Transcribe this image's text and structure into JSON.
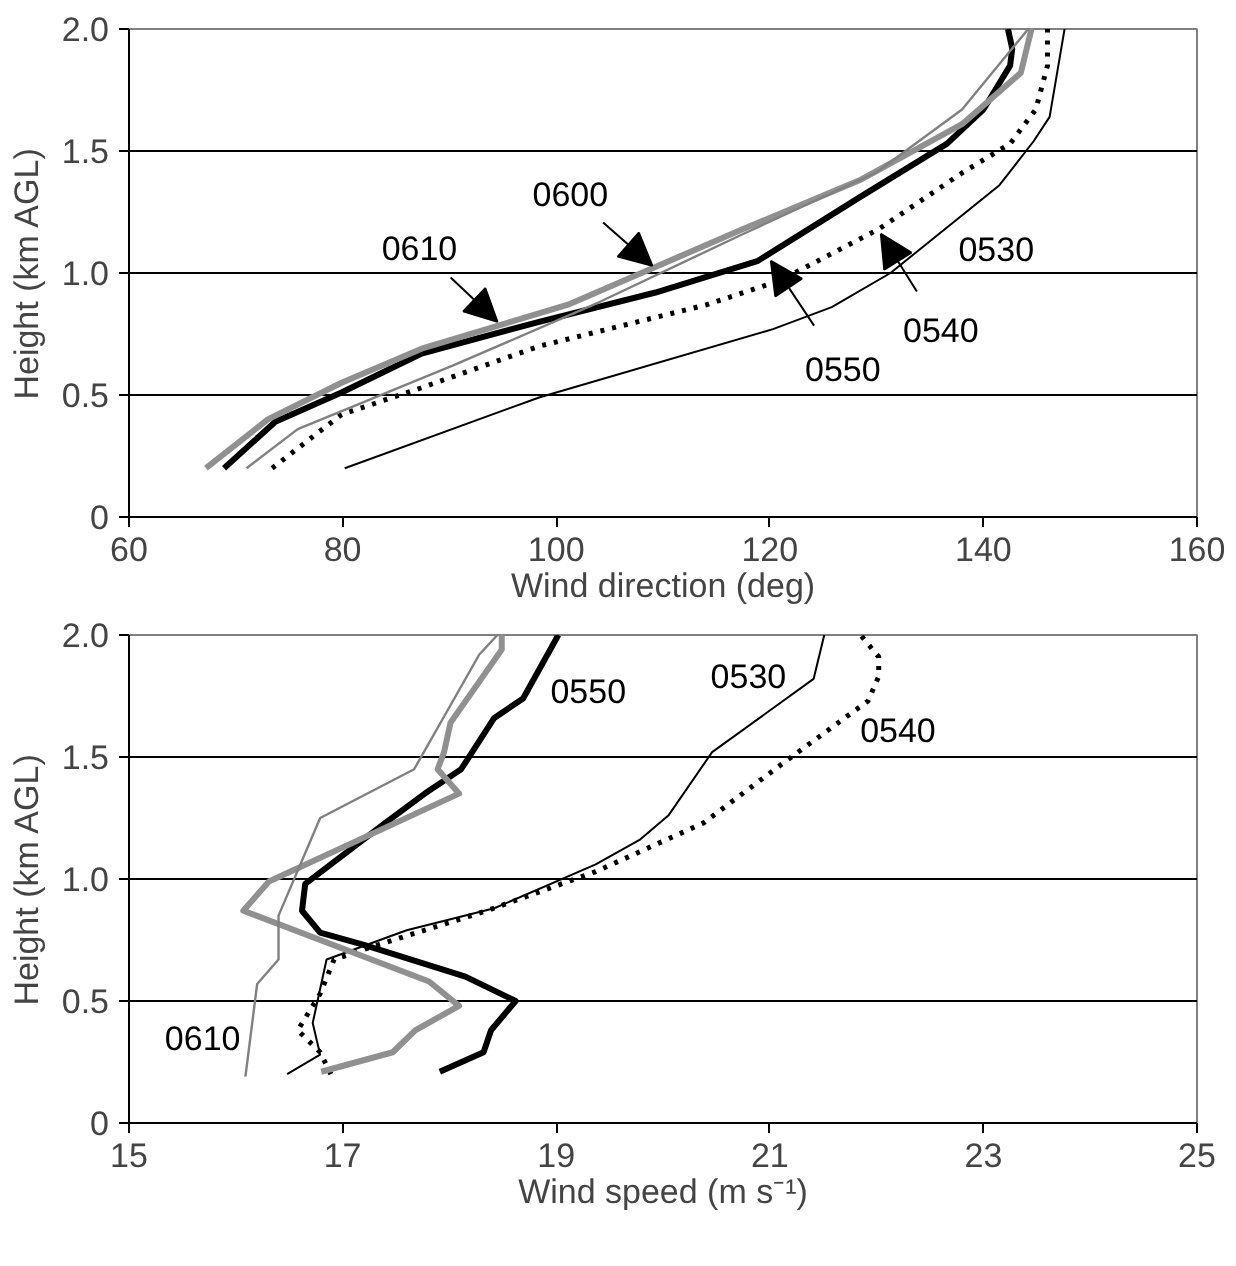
{
  "chart_data": [
    {
      "type": "line",
      "xlabel": "Wind direction (deg)",
      "ylabel": "Height (km AGL)",
      "xlim": [
        60,
        160
      ],
      "xticks": [
        60,
        80,
        100,
        120,
        140,
        160
      ],
      "ylim": [
        0,
        2.0
      ],
      "yticks": [
        0,
        {
          "value": 0.5,
          "label": "0.5"
        },
        {
          "value": 1.0,
          "label": "1.0"
        },
        {
          "value": 1.5,
          "label": "1.5"
        },
        {
          "value": 2.0,
          "label": "2.0"
        }
      ],
      "grid": "y",
      "marker": "none",
      "series": [
        {
          "color": "#000000",
          "line_style": "solid",
          "x": [
            80.2,
            98.4,
            120.3,
            125.8,
            131.3,
            141.5,
            144.7,
            146.2,
            147.6
          ],
          "values": [
            0.2,
            0.49,
            0.77,
            0.86,
            1.0,
            1.36,
            1.54,
            1.64,
            2.0
          ]
        },
        {
          "color": "#000000",
          "line_style": "dotted",
          "x": [
            73.4,
            79.9,
            87.4,
            98.4,
            114.1,
            121,
            130.2,
            138,
            142.5,
            144.9,
            146,
            146
          ],
          "values": [
            0.2,
            0.42,
            0.53,
            0.7,
            0.87,
            0.97,
            1.18,
            1.41,
            1.53,
            1.67,
            1.85,
            2.0
          ]
        },
        {
          "color": "#000000",
          "line_style": "solid",
          "x": [
            68.9,
            73.7,
            79.9,
            87.4,
            98.4,
            109.3,
            118.9,
            128.4,
            136.6,
            140,
            142.5,
            142.7,
            142.3
          ],
          "values": [
            0.2,
            0.39,
            0.51,
            0.67,
            0.8,
            0.92,
            1.05,
            1.31,
            1.53,
            1.67,
            1.85,
            1.92,
            2.0
          ]
        },
        {
          "color": "#909090",
          "line_style": "solid",
          "x": [
            67.2,
            73,
            79.9,
            87.4,
            101.1,
            117.5,
            128.4,
            138,
            143.5,
            144.5
          ],
          "values": [
            0.2,
            0.4,
            0.55,
            0.69,
            0.87,
            1.18,
            1.38,
            1.61,
            1.82,
            2.0
          ]
        },
        {
          "color": "#808080",
          "line_style": "solid",
          "x": [
            71,
            75.8,
            90.3,
            104,
            117.5,
            129.9,
            138,
            144.2
          ],
          "values": [
            0.2,
            0.36,
            0.62,
            0.88,
            1.16,
            1.41,
            1.67,
            2.0
          ]
        }
      ],
      "annotations": [
        {
          "text": "0600",
          "x": 109,
          "y": 1.03
        },
        {
          "text": "0610",
          "x": 94.5,
          "y": 0.8
        },
        {
          "text": "0540",
          "x": 130.4,
          "y": 1.16
        },
        {
          "text": "0550",
          "x": 120.1,
          "y": 1.05
        },
        "0530"
      ]
    },
    {
      "type": "line",
      "xlabel": "Wind speed (m s⁻¹)",
      "ylabel": "Height (km AGL)",
      "xlim": [
        15,
        25
      ],
      "xticks": [
        15,
        17,
        19,
        21,
        23,
        25
      ],
      "ylim": [
        0,
        2.0
      ],
      "yticks": [
        0,
        {
          "value": 0.5,
          "label": "0.5"
        },
        {
          "value": 1.0,
          "label": "1.0"
        },
        {
          "value": 1.5,
          "label": "1.5"
        },
        {
          "value": 2.0,
          "label": "2.0"
        }
      ],
      "grid": "y",
      "marker": "none",
      "series": [
        {
          "color": "#000000",
          "line_style": "solid",
          "x": [
            16.48,
            16.79,
            16.72,
            16.85,
            17.6,
            18.42,
            19.37,
            19.78,
            20.05,
            20.46,
            21.41,
            21.51
          ],
          "values": [
            0.2,
            0.28,
            0.41,
            0.67,
            0.79,
            0.88,
            1.06,
            1.16,
            1.26,
            1.52,
            1.82,
            2.0
          ]
        },
        {
          "color": "#000000",
          "line_style": "dotted",
          "x": [
            16.89,
            16.79,
            16.58,
            16.79,
            16.92,
            17.33,
            18.35,
            19.37,
            20.38,
            21.14,
            21.92,
            22.02,
            22.02,
            21.85
          ],
          "values": [
            0.2,
            0.29,
            0.38,
            0.53,
            0.67,
            0.73,
            0.87,
            1.03,
            1.23,
            1.48,
            1.73,
            1.83,
            1.91,
            2.0
          ]
        },
        {
          "color": "#000000",
          "line_style": "solid",
          "x": [
            17.91,
            18.32,
            18.39,
            18.62,
            18.15,
            17.2,
            16.79,
            16.62,
            16.65,
            17.4,
            17.77,
            18.11,
            18.42,
            18.69,
            19.02
          ],
          "values": [
            0.21,
            0.29,
            0.38,
            0.5,
            0.6,
            0.73,
            0.78,
            0.87,
            0.98,
            1.23,
            1.35,
            1.45,
            1.66,
            1.74,
            2.0
          ]
        },
        {
          "color": "#909090",
          "line_style": "solid",
          "x": [
            16.8,
            17.47,
            17.68,
            18.09,
            17.81,
            16.07,
            16.31,
            18.09,
            17.89,
            17.95,
            18.01,
            18.49,
            18.49
          ],
          "values": [
            0.21,
            0.29,
            0.38,
            0.48,
            0.58,
            0.87,
            0.99,
            1.35,
            1.45,
            1.52,
            1.64,
            1.94,
            2.0
          ]
        },
        {
          "color": "#808080",
          "line_style": "solid",
          "x": [
            16.09,
            16.2,
            16.4,
            16.4,
            16.79,
            17.67,
            18.28,
            18.45
          ],
          "values": [
            0.19,
            0.57,
            0.67,
            0.85,
            1.25,
            1.45,
            1.92,
            2.0
          ]
        }
      ],
      "annotations": [
        "0550",
        "0530",
        "0540",
        "0610"
      ]
    }
  ]
}
